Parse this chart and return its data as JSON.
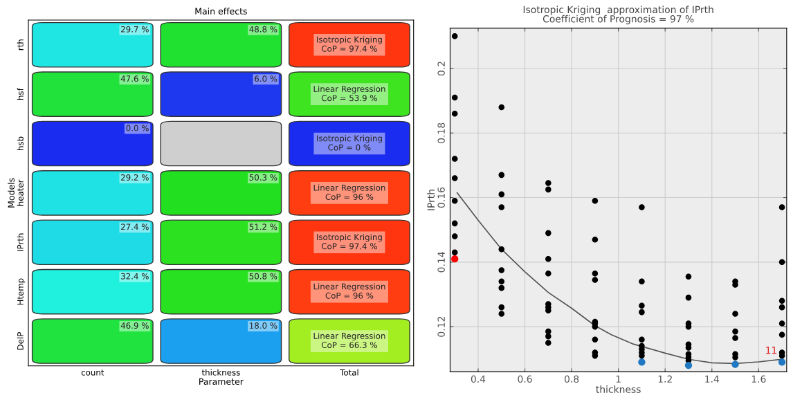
{
  "chart_data": [
    {
      "type": "heatmap",
      "title": "Main effects",
      "xlabel": "Parameter",
      "ylabel": "Models",
      "categories": [
        "count",
        "thickness",
        "Total"
      ],
      "y_categories": [
        "rth",
        "hsf",
        "hsb",
        "heater",
        "IPrth",
        "Htemp",
        "DelP"
      ],
      "cells": [
        [
          29.7,
          48.8,
          97.4
        ],
        [
          47.6,
          6.0,
          53.9
        ],
        [
          0.0,
          null,
          0
        ],
        [
          29.2,
          50.3,
          96
        ],
        [
          27.4,
          51.2,
          97.4
        ],
        [
          32.4,
          50.8,
          96
        ],
        [
          46.9,
          18.0,
          66.3
        ]
      ],
      "cell_labels": [
        [
          "29.7 %",
          "48.8 %",
          "Isotropic Kriging\nCoP = 97.4 %"
        ],
        [
          "47.6 %",
          "6.0 %",
          "Linear Regression\nCoP = 53.9 %"
        ],
        [
          "0.0 %",
          null,
          "Isotropic Kriging\nCoP = 0 %"
        ],
        [
          "29.2 %",
          "50.3 %",
          "Linear Regression\nCoP = 96 %"
        ],
        [
          "27.4 %",
          "51.2 %",
          "Isotropic Kriging\nCoP = 97.4 %"
        ],
        [
          "32.4 %",
          "50.8 %",
          "Linear Regression\nCoP = 96 %"
        ],
        [
          "46.9 %",
          "18.0 %",
          "Linear Regression\nCoP = 66.3 %"
        ]
      ]
    },
    {
      "type": "scatter",
      "title": "Isotropic Kriging  approximation of IPrth\nCoefficient of Prognosis = 97 %",
      "xlabel": "thickness",
      "ylabel": "IPrth",
      "xlim": [
        0.28,
        1.72
      ],
      "ylim": [
        0.106,
        0.2125
      ],
      "xticks": [
        0.4,
        0.6,
        0.8,
        1,
        1.2,
        1.4,
        1.6
      ],
      "yticks": [
        0.12,
        0.14,
        0.16,
        0.18,
        0.2
      ],
      "grid": true,
      "marker": "circle",
      "annotations": [
        {
          "text": "11",
          "x": 1.68,
          "y": 0.111
        }
      ],
      "series": [
        {
          "color": "#000000",
          "x": [
            0.3,
            0.3,
            0.3,
            0.3,
            0.3,
            0.3,
            0.3,
            0.3,
            0.3,
            0.5,
            0.5,
            0.5,
            0.5,
            0.5,
            0.5,
            0.5,
            0.5,
            0.5,
            0.5,
            0.7,
            0.7,
            0.7,
            0.7,
            0.7,
            0.7,
            0.7,
            0.7,
            0.7,
            0.7,
            0.7,
            0.9,
            0.9,
            0.9,
            0.9,
            0.9,
            0.9,
            0.9,
            0.9,
            0.9,
            0.9,
            1.1,
            1.1,
            1.1,
            1.1,
            1.1,
            1.1,
            1.1,
            1.1,
            1.1,
            1.3,
            1.3,
            1.3,
            1.3,
            1.3,
            1.3,
            1.3,
            1.3,
            1.3,
            1.5,
            1.5,
            1.5,
            1.5,
            1.5,
            1.5,
            1.5,
            1.7,
            1.7,
            1.7,
            1.7,
            1.7,
            1.7,
            1.7,
            1.7
          ],
          "values": [
            0.21,
            0.191,
            0.186,
            0.172,
            0.166,
            0.159,
            0.152,
            0.148,
            0.143,
            0.188,
            0.167,
            0.161,
            0.157,
            0.144,
            0.1375,
            0.134,
            0.132,
            0.126,
            0.124,
            0.1645,
            0.1625,
            0.149,
            0.141,
            0.1365,
            0.127,
            0.126,
            0.125,
            0.1185,
            0.117,
            0.115,
            0.159,
            0.147,
            0.1365,
            0.1345,
            0.1215,
            0.121,
            0.12,
            0.116,
            0.112,
            0.111,
            0.157,
            0.134,
            0.1265,
            0.1245,
            0.116,
            0.114,
            0.113,
            0.112,
            0.111,
            0.1355,
            0.129,
            0.121,
            0.12,
            0.1145,
            0.1135,
            0.1115,
            0.1105,
            0.1095,
            0.134,
            0.133,
            0.124,
            0.1185,
            0.1165,
            0.1115,
            0.1105,
            0.157,
            0.14,
            0.128,
            0.126,
            0.121,
            0.1175,
            0.112,
            0.111
          ]
        },
        {
          "color": "#ff0000",
          "x": [
            0.3
          ],
          "values": [
            0.141
          ]
        },
        {
          "color": "#1f78c1",
          "x": [
            1.1,
            1.3,
            1.5,
            1.7
          ],
          "values": [
            0.109,
            0.108,
            0.1083,
            0.109
          ]
        },
        {
          "type": "line",
          "marker": "none",
          "color": "#555555",
          "x": [
            0.31,
            0.4,
            0.5,
            0.6,
            0.7,
            0.8,
            0.9,
            0.97,
            1.06,
            1.2,
            1.3,
            1.4,
            1.5,
            1.6,
            1.7
          ],
          "values": [
            0.1615,
            0.153,
            0.144,
            0.137,
            0.1306,
            0.1257,
            0.1203,
            0.1175,
            0.1147,
            0.1118,
            0.1099,
            0.1088,
            0.1086,
            0.1091,
            0.1099
          ]
        }
      ]
    }
  ]
}
